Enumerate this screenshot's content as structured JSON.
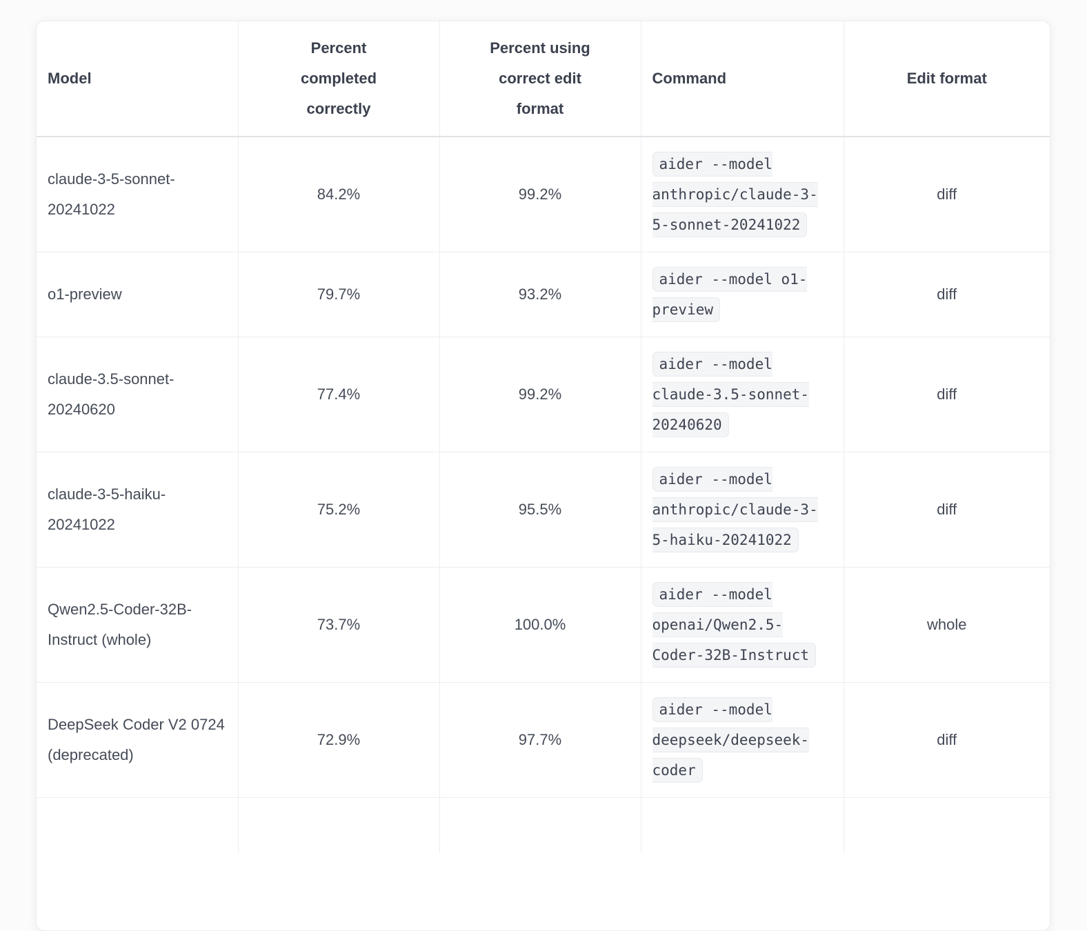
{
  "table": {
    "columns": [
      {
        "label": "Model",
        "align": "left"
      },
      {
        "label": "Percent completed correctly",
        "align": "center"
      },
      {
        "label": "Percent using correct edit format",
        "align": "center"
      },
      {
        "label": "Command",
        "align": "left"
      },
      {
        "label": "Edit format",
        "align": "center"
      }
    ],
    "rows": [
      {
        "model": "claude-3-5-sonnet-20241022",
        "percent_completed": "84.2%",
        "percent_edit_format": "99.2%",
        "command": "aider --model anthropic/claude-3-5-sonnet-20241022",
        "edit_format": "diff"
      },
      {
        "model": "o1-preview",
        "percent_completed": "79.7%",
        "percent_edit_format": "93.2%",
        "command": "aider --model o1-preview",
        "edit_format": "diff"
      },
      {
        "model": "claude-3.5-sonnet-20240620",
        "percent_completed": "77.4%",
        "percent_edit_format": "99.2%",
        "command": "aider --model claude-3.5-sonnet-20240620",
        "edit_format": "diff"
      },
      {
        "model": "claude-3-5-haiku-20241022",
        "percent_completed": "75.2%",
        "percent_edit_format": "95.5%",
        "command": "aider --model anthropic/claude-3-5-haiku-20241022",
        "edit_format": "diff"
      },
      {
        "model": "Qwen2.5-Coder-32B-Instruct (whole)",
        "percent_completed": "73.7%",
        "percent_edit_format": "100.0%",
        "command": "aider --model openai/Qwen2.5-Coder-32B-Instruct",
        "edit_format": "whole"
      },
      {
        "model": "DeepSeek Coder V2 0724 (deprecated)",
        "percent_completed": "72.9%",
        "percent_edit_format": "97.7%",
        "command": "aider --model deepseek/deepseek-coder",
        "edit_format": "diff"
      }
    ]
  },
  "colors": {
    "text": "#454b57",
    "header_text": "#3b414e",
    "border": "#ebedf0",
    "header_border": "#e1e3e7",
    "code_bg": "#f4f5f7",
    "code_border": "#e7e9ed",
    "card_bg": "#ffffff",
    "page_bg": "#fbfbfc"
  }
}
